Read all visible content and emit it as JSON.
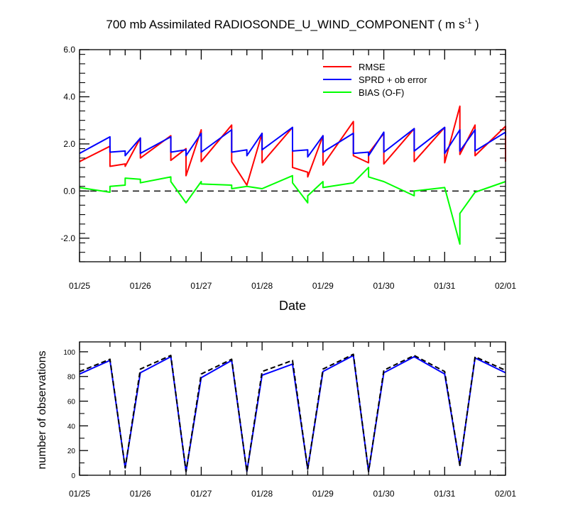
{
  "chart_data": [
    {
      "type": "line",
      "title_main": "700 mb Assimilated RADIOSONDE_U_WIND_COMPONENT ( m s",
      "title_sup": "-1",
      "title_end": " )",
      "xlabel": "Date",
      "ylabel": "",
      "xlim": [
        0,
        168
      ],
      "ylim": [
        -3,
        6
      ],
      "yticks": [
        6,
        4,
        2,
        0,
        -2
      ],
      "ytick_labels": [
        "6.0",
        "4.0",
        "2.0",
        "0.0",
        "-2.0"
      ],
      "xticks": [
        0,
        24,
        48,
        72,
        96,
        120,
        144,
        168
      ],
      "xtick_labels": [
        "01/25",
        "01/26",
        "01/27",
        "01/28",
        "01/29",
        "01/30",
        "01/31",
        "02/01"
      ],
      "zero_line": 0,
      "legend_position": "top-right",
      "series": [
        {
          "name": "RMSE",
          "color": "#ff0000",
          "points": [
            [
              0,
              1.25
            ],
            [
              12,
              1.9
            ],
            [
              12,
              1.05
            ],
            [
              18,
              1.15
            ],
            [
              18,
              1.05
            ],
            [
              24,
              2.25
            ],
            [
              24,
              1.4
            ],
            [
              36,
              2.35
            ],
            [
              36,
              1.3
            ],
            [
              42,
              1.8
            ],
            [
              42,
              0.65
            ],
            [
              48,
              2.6
            ],
            [
              48,
              1.25
            ],
            [
              60,
              2.8
            ],
            [
              60,
              1.25
            ],
            [
              66,
              0.25
            ],
            [
              72,
              2.45
            ],
            [
              72,
              1.2
            ],
            [
              84,
              2.7
            ],
            [
              84,
              1.0
            ],
            [
              90,
              0.8
            ],
            [
              90,
              0.6
            ],
            [
              96,
              2.35
            ],
            [
              96,
              1.1
            ],
            [
              108,
              2.95
            ],
            [
              108,
              1.5
            ],
            [
              114,
              1.2
            ],
            [
              114,
              1.6
            ],
            [
              120,
              2.45
            ],
            [
              120,
              1.15
            ],
            [
              132,
              2.65
            ],
            [
              132,
              1.25
            ],
            [
              144,
              2.7
            ],
            [
              144,
              1.2
            ],
            [
              150,
              3.6
            ],
            [
              150,
              1.55
            ],
            [
              156,
              2.8
            ],
            [
              156,
              1.5
            ],
            [
              168,
              2.75
            ],
            [
              168,
              1.25
            ]
          ]
        },
        {
          "name": "SPRD + ob error",
          "color": "#0000ff",
          "points": [
            [
              0,
              1.6
            ],
            [
              12,
              2.3
            ],
            [
              12,
              1.65
            ],
            [
              18,
              1.7
            ],
            [
              18,
              1.5
            ],
            [
              24,
              2.25
            ],
            [
              24,
              1.6
            ],
            [
              36,
              2.3
            ],
            [
              36,
              1.65
            ],
            [
              42,
              1.75
            ],
            [
              42,
              1.5
            ],
            [
              48,
              2.45
            ],
            [
              48,
              1.65
            ],
            [
              60,
              2.6
            ],
            [
              60,
              1.65
            ],
            [
              66,
              1.75
            ],
            [
              66,
              1.5
            ],
            [
              72,
              2.45
            ],
            [
              72,
              1.75
            ],
            [
              84,
              2.7
            ],
            [
              84,
              1.7
            ],
            [
              90,
              1.75
            ],
            [
              90,
              1.45
            ],
            [
              96,
              2.35
            ],
            [
              96,
              1.65
            ],
            [
              108,
              2.45
            ],
            [
              108,
              1.6
            ],
            [
              114,
              1.65
            ],
            [
              114,
              1.5
            ],
            [
              120,
              2.5
            ],
            [
              120,
              1.65
            ],
            [
              132,
              2.65
            ],
            [
              132,
              1.7
            ],
            [
              144,
              2.7
            ],
            [
              144,
              1.6
            ],
            [
              150,
              2.6
            ],
            [
              150,
              1.7
            ],
            [
              156,
              2.6
            ],
            [
              156,
              1.7
            ],
            [
              168,
              2.5
            ],
            [
              168,
              2.35
            ]
          ]
        },
        {
          "name": "BIAS (O-F)",
          "color": "#00ff00",
          "points": [
            [
              0,
              0.15
            ],
            [
              12,
              -0.05
            ],
            [
              12,
              0.2
            ],
            [
              18,
              0.25
            ],
            [
              18,
              0.55
            ],
            [
              24,
              0.5
            ],
            [
              24,
              0.35
            ],
            [
              36,
              0.6
            ],
            [
              36,
              0.4
            ],
            [
              42,
              -0.5
            ],
            [
              48,
              0.4
            ],
            [
              48,
              0.3
            ],
            [
              60,
              0.25
            ],
            [
              60,
              0.1
            ],
            [
              66,
              0.2
            ],
            [
              72,
              0.1
            ],
            [
              84,
              0.65
            ],
            [
              84,
              0.35
            ],
            [
              90,
              -0.5
            ],
            [
              90,
              -0.2
            ],
            [
              96,
              0.4
            ],
            [
              96,
              0.15
            ],
            [
              108,
              0.35
            ],
            [
              114,
              1.0
            ],
            [
              114,
              0.6
            ],
            [
              120,
              0.4
            ],
            [
              132,
              -0.2
            ],
            [
              132,
              0.0
            ],
            [
              144,
              0.15
            ],
            [
              150,
              -2.25
            ],
            [
              150,
              -0.95
            ],
            [
              156,
              -0.05
            ],
            [
              168,
              0.4
            ]
          ]
        }
      ]
    },
    {
      "type": "line",
      "xlabel": "",
      "ylabel": "number of observations",
      "xlim": [
        0,
        168
      ],
      "ylim": [
        0,
        108
      ],
      "yticks": [
        0,
        20,
        40,
        60,
        80,
        100
      ],
      "ytick_labels": [
        "0",
        "20",
        "40",
        "60",
        "80",
        "100"
      ],
      "xticks": [
        0,
        24,
        48,
        72,
        96,
        120,
        144,
        168
      ],
      "xtick_labels": [
        "01/25",
        "01/26",
        "01/27",
        "01/28",
        "01/29",
        "01/30",
        "01/31",
        "02/01"
      ],
      "series": [
        {
          "color": "#0000ff",
          "style": "solid",
          "points": [
            [
              0,
              82
            ],
            [
              12,
              93
            ],
            [
              18,
              6
            ],
            [
              24,
              83
            ],
            [
              36,
              96
            ],
            [
              42,
              3
            ],
            [
              48,
              79
            ],
            [
              60,
              93
            ],
            [
              66,
              3
            ],
            [
              72,
              81
            ],
            [
              84,
              90
            ],
            [
              90,
              5
            ],
            [
              96,
              84
            ],
            [
              108,
              97
            ],
            [
              114,
              3
            ],
            [
              120,
              83
            ],
            [
              132,
              96
            ],
            [
              144,
              82
            ],
            [
              150,
              8
            ],
            [
              156,
              95
            ],
            [
              168,
              83
            ]
          ]
        },
        {
          "color": "#000000",
          "style": "dashed",
          "points": [
            [
              0,
              84
            ],
            [
              12,
              94
            ],
            [
              18,
              6
            ],
            [
              24,
              86
            ],
            [
              36,
              97
            ],
            [
              42,
              3
            ],
            [
              48,
              82
            ],
            [
              60,
              94
            ],
            [
              66,
              3
            ],
            [
              72,
              84
            ],
            [
              84,
              93
            ],
            [
              90,
              5
            ],
            [
              96,
              86
            ],
            [
              108,
              98
            ],
            [
              114,
              3
            ],
            [
              120,
              85
            ],
            [
              132,
              97
            ],
            [
              144,
              84
            ],
            [
              150,
              8
            ],
            [
              156,
              96
            ],
            [
              168,
              85
            ]
          ]
        }
      ]
    }
  ]
}
